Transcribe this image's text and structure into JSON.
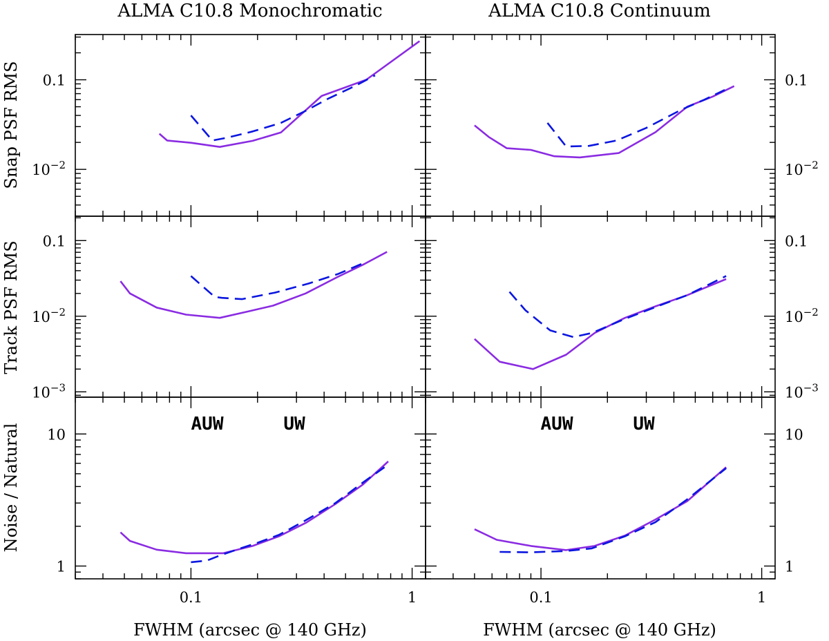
{
  "chart_data": {
    "type": "line",
    "columns": [
      {
        "title": "ALMA C10.8 Monochromatic",
        "xlabel": "FWHM (arcsec @ 140 GHz)"
      },
      {
        "title": "ALMA C10.8 Continuum",
        "xlabel": "FWHM (arcsec @ 140 GHz)"
      }
    ],
    "x_scale": "log",
    "xlim": [
      0.03,
      1.15
    ],
    "x_ticks": [
      {
        "value": 0.1,
        "label": "0.1"
      },
      {
        "value": 1,
        "label": "1"
      }
    ],
    "series_styles": [
      {
        "name": "AUW",
        "color": "#8a2be2",
        "dash": ""
      },
      {
        "name": "UW",
        "color": "#0b16e0",
        "dash": "16,9"
      }
    ],
    "legend": {
      "panel": "Noise / Natural",
      "labels": [
        "AUW",
        "UW"
      ],
      "placement": "top-center"
    },
    "rows": [
      {
        "ylabel": "Snap PSF RMS",
        "y_scale": "log",
        "ylim": [
          0.003,
          0.32
        ],
        "y_ticks": [
          {
            "value": 0.01,
            "label": "10",
            "sup": "−2"
          },
          {
            "value": 0.1,
            "label": "0.1",
            "sup": ""
          }
        ],
        "panels": [
          {
            "series": [
              {
                "name": "AUW",
                "x": [
                  0.072,
                  0.078,
                  0.1,
                  0.135,
                  0.19,
                  0.255,
                  0.39,
                  0.62,
                  1.08
                ],
                "y": [
                  0.025,
                  0.021,
                  0.0198,
                  0.0178,
                  0.0208,
                  0.0258,
                  0.066,
                  0.1,
                  0.27
                ]
              },
              {
                "name": "UW",
                "x": [
                  0.1,
                  0.125,
                  0.145,
                  0.19,
                  0.255,
                  0.33,
                  0.42,
                  0.55,
                  0.68
                ],
                "y": [
                  0.04,
                  0.021,
                  0.0225,
                  0.0265,
                  0.033,
                  0.045,
                  0.062,
                  0.085,
                  0.112
                ]
              }
            ]
          },
          {
            "series": [
              {
                "name": "AUW",
                "x": [
                  0.05,
                  0.058,
                  0.07,
                  0.09,
                  0.115,
                  0.15,
                  0.225,
                  0.33,
                  0.46,
                  0.6,
                  0.75
                ],
                "y": [
                  0.031,
                  0.023,
                  0.0172,
                  0.0165,
                  0.014,
                  0.0136,
                  0.0152,
                  0.026,
                  0.05,
                  0.065,
                  0.085
                ]
              },
              {
                "name": "UW",
                "x": [
                  0.107,
                  0.13,
                  0.165,
                  0.22,
                  0.3,
                  0.43,
                  0.55,
                  0.68
                ],
                "y": [
                  0.033,
                  0.018,
                  0.0183,
                  0.021,
                  0.029,
                  0.046,
                  0.06,
                  0.077
                ]
              }
            ]
          }
        ]
      },
      {
        "ylabel": "Track PSF RMS",
        "y_scale": "log",
        "ylim": [
          0.00085,
          0.21
        ],
        "y_ticks": [
          {
            "value": 0.001,
            "label": "10",
            "sup": "−3"
          },
          {
            "value": 0.01,
            "label": "10",
            "sup": "−2"
          },
          {
            "value": 0.1,
            "label": "0.1",
            "sup": ""
          }
        ],
        "panels": [
          {
            "series": [
              {
                "name": "AUW",
                "x": [
                  0.048,
                  0.053,
                  0.07,
                  0.095,
                  0.135,
                  0.18,
                  0.235,
                  0.33,
                  0.46,
                  0.6,
                  0.77
                ],
                "y": [
                  0.029,
                  0.02,
                  0.013,
                  0.0105,
                  0.0095,
                  0.0115,
                  0.0138,
                  0.02,
                  0.033,
                  0.048,
                  0.071
                ]
              },
              {
                "name": "UW",
                "x": [
                  0.1,
                  0.128,
                  0.138,
                  0.17,
                  0.24,
                  0.34,
                  0.46,
                  0.6
                ],
                "y": [
                  0.034,
                  0.018,
                  0.0175,
                  0.0168,
                  0.0205,
                  0.027,
                  0.036,
                  0.05
                ]
              }
            ]
          },
          {
            "series": [
              {
                "name": "AUW",
                "x": [
                  0.05,
                  0.065,
                  0.092,
                  0.13,
                  0.175,
                  0.24,
                  0.33,
                  0.46,
                  0.69
                ],
                "y": [
                  0.005,
                  0.0025,
                  0.002,
                  0.0031,
                  0.006,
                  0.0095,
                  0.0135,
                  0.019,
                  0.031
                ]
              },
              {
                "name": "UW",
                "x": [
                  0.072,
                  0.085,
                  0.11,
                  0.14,
                  0.17,
                  0.24,
                  0.33,
                  0.46,
                  0.69
                ],
                "y": [
                  0.021,
                  0.012,
                  0.0065,
                  0.0053,
                  0.006,
                  0.0092,
                  0.0132,
                  0.019,
                  0.034
                ]
              }
            ]
          }
        ]
      },
      {
        "ylabel": "Noise / Natural",
        "y_scale": "log",
        "ylim": [
          0.8,
          19
        ],
        "y_ticks": [
          {
            "value": 1,
            "label": "1",
            "sup": ""
          },
          {
            "value": 10,
            "label": "10",
            "sup": ""
          }
        ],
        "panels": [
          {
            "series": [
              {
                "name": "AUW",
                "x": [
                  0.048,
                  0.053,
                  0.07,
                  0.095,
                  0.14,
                  0.19,
                  0.25,
                  0.33,
                  0.45,
                  0.6,
                  0.78
                ],
                "y": [
                  1.8,
                  1.55,
                  1.33,
                  1.25,
                  1.25,
                  1.42,
                  1.68,
                  2.12,
                  2.95,
                  4.15,
                  6.2
                ]
              },
              {
                "name": "UW",
                "x": [
                  0.1,
                  0.118,
                  0.135,
                  0.165,
                  0.2,
                  0.25,
                  0.33,
                  0.45,
                  0.6,
                  0.75
                ],
                "y": [
                  1.07,
                  1.1,
                  1.2,
                  1.35,
                  1.5,
                  1.72,
                  2.22,
                  3.0,
                  4.3,
                  5.6
                ]
              }
            ]
          },
          {
            "series": [
              {
                "name": "AUW",
                "x": [
                  0.05,
                  0.063,
                  0.09,
                  0.13,
                  0.175,
                  0.24,
                  0.33,
                  0.46,
                  0.69
                ],
                "y": [
                  1.9,
                  1.58,
                  1.42,
                  1.32,
                  1.42,
                  1.7,
                  2.25,
                  3.1,
                  5.6
                ]
              },
              {
                "name": "UW",
                "x": [
                  0.065,
                  0.09,
                  0.13,
                  0.17,
                  0.24,
                  0.33,
                  0.46,
                  0.69
                ],
                "y": [
                  1.28,
                  1.27,
                  1.3,
                  1.36,
                  1.68,
                  2.15,
                  3.2,
                  5.5
                ]
              }
            ]
          }
        ]
      }
    ]
  }
}
